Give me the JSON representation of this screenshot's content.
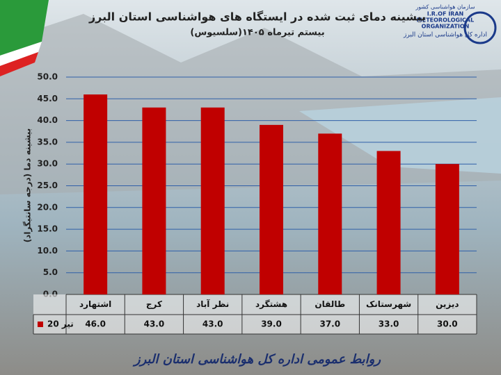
{
  "logo": {
    "org_fa": "سازمان هواشناسی کشور",
    "org_en": [
      "I.R.OF IRAN",
      "METEOROLOGICAL",
      "ORGANIZATION"
    ],
    "office": "اداره کل هواشناسی استان البرز"
  },
  "footer": "روابط عمومی اداره کل هواشناسی استان البرز",
  "chart_data": {
    "type": "bar",
    "title": "بیشینه دمای ثبت شده در ایستگاه های هواشناسی استان البرز",
    "subtitle": "بیستم تیرماه ۱۴۰۵(سلسیوس)",
    "y_label": "بیشینه دما (درجه سانتیگراد)",
    "categories": [
      "اشتهارد",
      "کرج",
      "نظر آباد",
      "هشتگرد",
      "طالقان",
      "شهرستانک",
      "دیزین"
    ],
    "series": [
      {
        "name": "20 تیر",
        "color": "#c00000",
        "values": [
          46,
          43,
          43,
          39,
          37,
          33,
          30
        ],
        "value_labels": [
          "46.0",
          "43.0",
          "43.0",
          "39.0",
          "37.0",
          "33.0",
          "30.0"
        ]
      }
    ],
    "ylim": [
      0,
      50
    ],
    "yticks": [
      {
        "value": 0,
        "label": "0.0"
      },
      {
        "value": 5,
        "label": "5.0"
      },
      {
        "value": 10,
        "label": "10.0"
      },
      {
        "value": 15,
        "label": "15.0"
      },
      {
        "value": 20,
        "label": "20.0"
      },
      {
        "value": 25,
        "label": "25.0"
      },
      {
        "value": 30,
        "label": "30.0"
      },
      {
        "value": 35,
        "label": "35.0"
      },
      {
        "value": 40,
        "label": "40.0"
      },
      {
        "value": 45,
        "label": "45.0"
      },
      {
        "value": 50,
        "label": "50.0"
      }
    ],
    "grid": true
  }
}
